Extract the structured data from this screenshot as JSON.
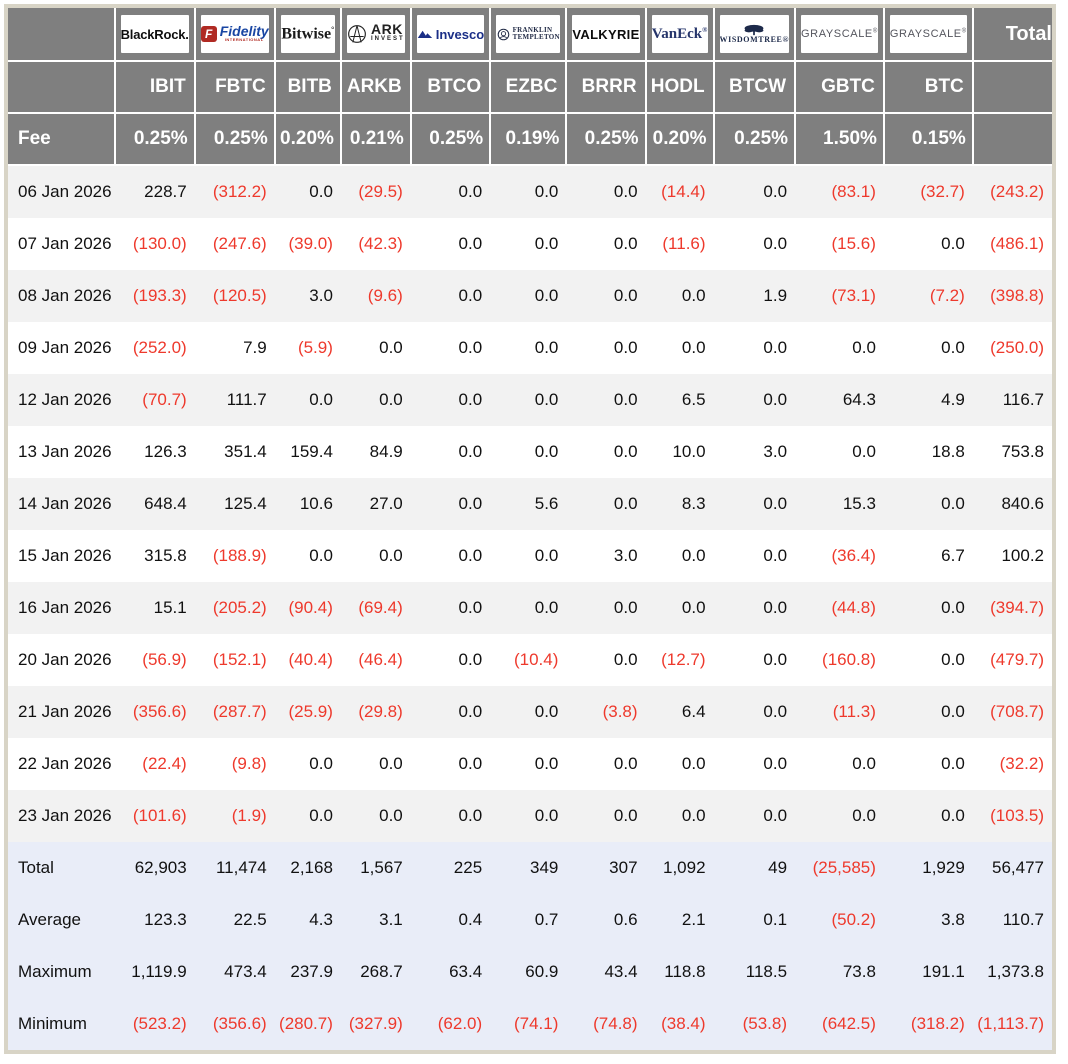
{
  "colors": {
    "header_bg": "#7f7f7f",
    "header_text": "#ffffff",
    "negative_text": "#ee392c",
    "row_stripe": "#f2f2f2",
    "summary_bg": "#e9edf8",
    "outer_border": "#d8d4c6"
  },
  "labels": {
    "fee": "Fee",
    "total_column": "Total"
  },
  "providers": [
    {
      "id": "blackrock",
      "ticker": "IBIT",
      "fee": "0.25%",
      "logo_text": "BlackRock",
      "logo_sub": ""
    },
    {
      "id": "fidelity",
      "ticker": "FBTC",
      "fee": "0.25%",
      "logo_text": "Fidelity",
      "logo_sub": "INTERNATIONAL"
    },
    {
      "id": "bitwise",
      "ticker": "BITB",
      "fee": "0.20%",
      "logo_text": "Bitwise",
      "logo_sub": ""
    },
    {
      "id": "ark",
      "ticker": "ARKB",
      "fee": "0.21%",
      "logo_text": "ARK",
      "logo_sub": "INVEST"
    },
    {
      "id": "invesco",
      "ticker": "BTCO",
      "fee": "0.25%",
      "logo_text": "Invesco",
      "logo_sub": ""
    },
    {
      "id": "franklin",
      "ticker": "EZBC",
      "fee": "0.19%",
      "logo_text": "FRANKLIN",
      "logo_sub": "TEMPLETON"
    },
    {
      "id": "valkyrie",
      "ticker": "BRRR",
      "fee": "0.25%",
      "logo_text": "VALKYRIE",
      "logo_sub": ""
    },
    {
      "id": "vaneck",
      "ticker": "HODL",
      "fee": "0.20%",
      "logo_text": "VanEck",
      "logo_sub": ""
    },
    {
      "id": "wisdomtree",
      "ticker": "BTCW",
      "fee": "0.25%",
      "logo_text": "WISDOMTREE",
      "logo_sub": ""
    },
    {
      "id": "grayscale",
      "ticker": "GBTC",
      "fee": "1.50%",
      "logo_text": "GRAYSCALE",
      "logo_sub": ""
    },
    {
      "id": "grayscale",
      "ticker": "BTC",
      "fee": "0.15%",
      "logo_text": "GRAYSCALE",
      "logo_sub": ""
    }
  ],
  "chart_data": {
    "type": "table",
    "title": "",
    "columns": [
      "IBIT",
      "FBTC",
      "BITB",
      "ARKB",
      "BTCO",
      "EZBC",
      "BRRR",
      "HODL",
      "BTCW",
      "GBTC",
      "BTC",
      "Total"
    ],
    "fees": [
      "0.25%",
      "0.25%",
      "0.20%",
      "0.21%",
      "0.25%",
      "0.19%",
      "0.25%",
      "0.20%",
      "0.25%",
      "1.50%",
      "0.15%"
    ],
    "rows": [
      {
        "date": "06 Jan 2026",
        "values": [
          "228.7",
          "(312.2)",
          "0.0",
          "(29.5)",
          "0.0",
          "0.0",
          "0.0",
          "(14.4)",
          "0.0",
          "(83.1)",
          "(32.7)",
          "(243.2)"
        ]
      },
      {
        "date": "07 Jan 2026",
        "values": [
          "(130.0)",
          "(247.6)",
          "(39.0)",
          "(42.3)",
          "0.0",
          "0.0",
          "0.0",
          "(11.6)",
          "0.0",
          "(15.6)",
          "0.0",
          "(486.1)"
        ]
      },
      {
        "date": "08 Jan 2026",
        "values": [
          "(193.3)",
          "(120.5)",
          "3.0",
          "(9.6)",
          "0.0",
          "0.0",
          "0.0",
          "0.0",
          "1.9",
          "(73.1)",
          "(7.2)",
          "(398.8)"
        ]
      },
      {
        "date": "09 Jan 2026",
        "values": [
          "(252.0)",
          "7.9",
          "(5.9)",
          "0.0",
          "0.0",
          "0.0",
          "0.0",
          "0.0",
          "0.0",
          "0.0",
          "0.0",
          "(250.0)"
        ]
      },
      {
        "date": "12 Jan 2026",
        "values": [
          "(70.7)",
          "111.7",
          "0.0",
          "0.0",
          "0.0",
          "0.0",
          "0.0",
          "6.5",
          "0.0",
          "64.3",
          "4.9",
          "116.7"
        ]
      },
      {
        "date": "13 Jan 2026",
        "values": [
          "126.3",
          "351.4",
          "159.4",
          "84.9",
          "0.0",
          "0.0",
          "0.0",
          "10.0",
          "3.0",
          "0.0",
          "18.8",
          "753.8"
        ]
      },
      {
        "date": "14 Jan 2026",
        "values": [
          "648.4",
          "125.4",
          "10.6",
          "27.0",
          "0.0",
          "5.6",
          "0.0",
          "8.3",
          "0.0",
          "15.3",
          "0.0",
          "840.6"
        ]
      },
      {
        "date": "15 Jan 2026",
        "values": [
          "315.8",
          "(188.9)",
          "0.0",
          "0.0",
          "0.0",
          "0.0",
          "3.0",
          "0.0",
          "0.0",
          "(36.4)",
          "6.7",
          "100.2"
        ]
      },
      {
        "date": "16 Jan 2026",
        "values": [
          "15.1",
          "(205.2)",
          "(90.4)",
          "(69.4)",
          "0.0",
          "0.0",
          "0.0",
          "0.0",
          "0.0",
          "(44.8)",
          "0.0",
          "(394.7)"
        ]
      },
      {
        "date": "20 Jan 2026",
        "values": [
          "(56.9)",
          "(152.1)",
          "(40.4)",
          "(46.4)",
          "0.0",
          "(10.4)",
          "0.0",
          "(12.7)",
          "0.0",
          "(160.8)",
          "0.0",
          "(479.7)"
        ]
      },
      {
        "date": "21 Jan 2026",
        "values": [
          "(356.6)",
          "(287.7)",
          "(25.9)",
          "(29.8)",
          "0.0",
          "0.0",
          "(3.8)",
          "6.4",
          "0.0",
          "(11.3)",
          "0.0",
          "(708.7)"
        ]
      },
      {
        "date": "22 Jan 2026",
        "values": [
          "(22.4)",
          "(9.8)",
          "0.0",
          "0.0",
          "0.0",
          "0.0",
          "0.0",
          "0.0",
          "0.0",
          "0.0",
          "0.0",
          "(32.2)"
        ]
      },
      {
        "date": "23 Jan 2026",
        "values": [
          "(101.6)",
          "(1.9)",
          "0.0",
          "0.0",
          "0.0",
          "0.0",
          "0.0",
          "0.0",
          "0.0",
          "0.0",
          "0.0",
          "(103.5)"
        ]
      }
    ],
    "summary": [
      {
        "label": "Total",
        "values": [
          "62,903",
          "11,474",
          "2,168",
          "1,567",
          "225",
          "349",
          "307",
          "1,092",
          "49",
          "(25,585)",
          "1,929",
          "56,477"
        ]
      },
      {
        "label": "Average",
        "values": [
          "123.3",
          "22.5",
          "4.3",
          "3.1",
          "0.4",
          "0.7",
          "0.6",
          "2.1",
          "0.1",
          "(50.2)",
          "3.8",
          "110.7"
        ]
      },
      {
        "label": "Maximum",
        "values": [
          "1,119.9",
          "473.4",
          "237.9",
          "268.7",
          "63.4",
          "60.9",
          "43.4",
          "118.8",
          "118.5",
          "73.8",
          "191.1",
          "1,373.8"
        ]
      },
      {
        "label": "Minimum",
        "values": [
          "(523.2)",
          "(356.6)",
          "(280.7)",
          "(327.9)",
          "(62.0)",
          "(74.1)",
          "(74.8)",
          "(38.4)",
          "(53.8)",
          "(642.5)",
          "(318.2)",
          "(1,113.7)"
        ]
      }
    ]
  }
}
